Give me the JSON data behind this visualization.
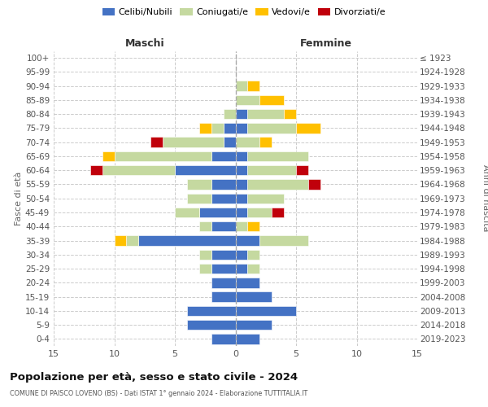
{
  "age_groups": [
    "0-4",
    "5-9",
    "10-14",
    "15-19",
    "20-24",
    "25-29",
    "30-34",
    "35-39",
    "40-44",
    "45-49",
    "50-54",
    "55-59",
    "60-64",
    "65-69",
    "70-74",
    "75-79",
    "80-84",
    "85-89",
    "90-94",
    "95-99",
    "100+"
  ],
  "birth_years": [
    "2019-2023",
    "2014-2018",
    "2009-2013",
    "2004-2008",
    "1999-2003",
    "1994-1998",
    "1989-1993",
    "1984-1988",
    "1979-1983",
    "1974-1978",
    "1969-1973",
    "1964-1968",
    "1959-1963",
    "1954-1958",
    "1949-1953",
    "1944-1948",
    "1939-1943",
    "1934-1938",
    "1929-1933",
    "1924-1928",
    "≤ 1923"
  ],
  "males_celibi": [
    2,
    4,
    4,
    2,
    2,
    2,
    2,
    8,
    2,
    3,
    2,
    2,
    5,
    2,
    1,
    1,
    0,
    0,
    0,
    0,
    0
  ],
  "males_coniugati": [
    0,
    0,
    0,
    0,
    0,
    1,
    1,
    1,
    1,
    2,
    2,
    2,
    6,
    8,
    5,
    1,
    1,
    0,
    0,
    0,
    0
  ],
  "males_vedovi": [
    0,
    0,
    0,
    0,
    0,
    0,
    0,
    1,
    0,
    0,
    0,
    0,
    0,
    1,
    0,
    1,
    0,
    0,
    0,
    0,
    0
  ],
  "males_divorziati": [
    0,
    0,
    0,
    0,
    0,
    0,
    0,
    0,
    0,
    0,
    0,
    0,
    1,
    0,
    1,
    0,
    0,
    0,
    0,
    0,
    0
  ],
  "females_nubili": [
    2,
    3,
    5,
    3,
    2,
    1,
    1,
    2,
    0,
    1,
    1,
    1,
    1,
    1,
    0,
    1,
    1,
    0,
    0,
    0,
    0
  ],
  "females_coniugate": [
    0,
    0,
    0,
    0,
    0,
    1,
    1,
    4,
    1,
    2,
    3,
    5,
    4,
    5,
    2,
    4,
    3,
    2,
    1,
    0,
    0
  ],
  "females_vedove": [
    0,
    0,
    0,
    0,
    0,
    0,
    0,
    0,
    1,
    0,
    0,
    0,
    0,
    0,
    1,
    2,
    1,
    2,
    1,
    0,
    0
  ],
  "females_divorziate": [
    0,
    0,
    0,
    0,
    0,
    0,
    0,
    0,
    0,
    1,
    0,
    1,
    1,
    0,
    0,
    0,
    0,
    0,
    0,
    0,
    0
  ],
  "color_celibi": "#4472c4",
  "color_coniugati": "#c5d9a0",
  "color_vedovi": "#ffc000",
  "color_divorziati": "#c0000b",
  "xlim": 15,
  "title": "Popolazione per età, sesso e stato civile - 2024",
  "subtitle": "COMUNE DI PAISCO LOVENO (BS) - Dati ISTAT 1° gennaio 2024 - Elaborazione TUTTITALIA.IT",
  "ylabel_left": "Fasce di età",
  "ylabel_right": "Anni di nascita",
  "label_maschi": "Maschi",
  "label_femmine": "Femmine",
  "legend_labels": [
    "Celibi/Nubili",
    "Coniugati/e",
    "Vedovi/e",
    "Divorziati/e"
  ]
}
